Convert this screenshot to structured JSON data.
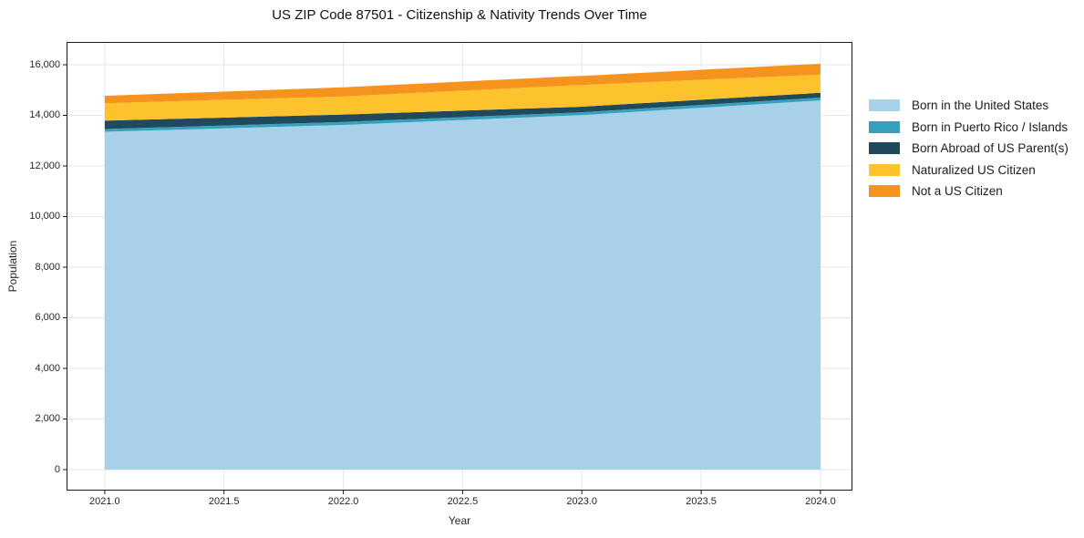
{
  "chart_data": {
    "type": "area",
    "stacked": true,
    "title": "US ZIP Code 87501 - Citizenship & Nativity Trends Over Time",
    "xlabel": "Year",
    "ylabel": "Population",
    "x": [
      2021,
      2022,
      2023,
      2024
    ],
    "series": [
      {
        "name": "Born in the United States",
        "color": "#a7d1e8",
        "values": [
          13350,
          13620,
          14010,
          14590
        ]
      },
      {
        "name": "Born in Puerto Rico / Islands",
        "color": "#36a1bd",
        "values": [
          110,
          120,
          110,
          110
        ]
      },
      {
        "name": "Born Abroad of US Parent(s)",
        "color": "#20495c",
        "values": [
          330,
          290,
          220,
          190
        ]
      },
      {
        "name": "Naturalized US Citizen",
        "color": "#fcc32c",
        "values": [
          690,
          720,
          860,
          720
        ]
      },
      {
        "name": "Not a US Citizen",
        "color": "#f6921e",
        "values": [
          290,
          360,
          360,
          430
        ]
      }
    ],
    "x_ticks": [
      "2021.0",
      "2021.5",
      "2022.0",
      "2022.5",
      "2023.0",
      "2023.5",
      "2024.0"
    ],
    "x_tick_values": [
      2021,
      2021.5,
      2022,
      2022.5,
      2023,
      2023.5,
      2024
    ],
    "y_ticks": [
      "0",
      "2,000",
      "4,000",
      "6,000",
      "8,000",
      "10,000",
      "12,000",
      "14,000",
      "16,000"
    ],
    "y_tick_values": [
      0,
      2000,
      4000,
      6000,
      8000,
      10000,
      12000,
      14000,
      16000
    ],
    "xlim": [
      2020.84,
      2024.134
    ],
    "ylim": [
      -830,
      16900
    ],
    "grid": true,
    "grid_color": "#e6e6e6",
    "spine_color": "#1a1a1a",
    "legend_position": "right"
  }
}
